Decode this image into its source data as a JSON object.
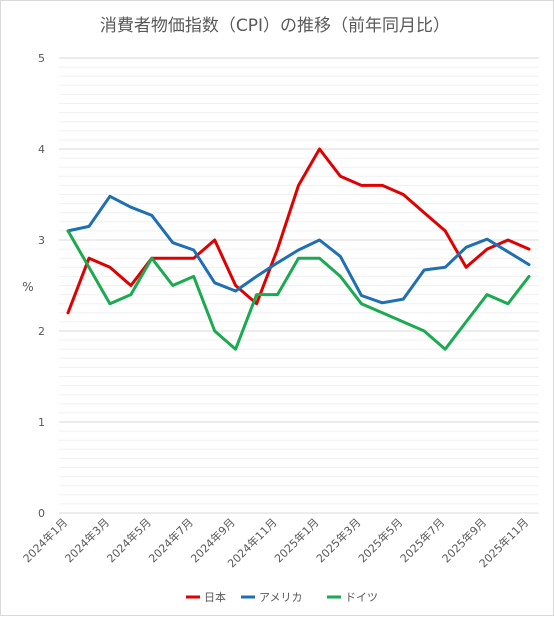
{
  "chart_data": {
    "type": "line",
    "title": "消費者物価指数（CPI）の推移（前年同月比）",
    "ylabel": "%",
    "xlabel": "",
    "ylim": [
      0,
      5
    ],
    "yticks": [
      "0",
      "1",
      "2",
      "3",
      "4",
      "5"
    ],
    "categories": [
      "2024年1月",
      "2024年2月",
      "2024年3月",
      "2024年4月",
      "2024年5月",
      "2024年6月",
      "2024年7月",
      "2024年8月",
      "2024年9月",
      "2024年10月",
      "2024年11月",
      "2024年12月",
      "2025年1月",
      "2025年2月",
      "2025年3月",
      "2025年4月",
      "2025年5月",
      "2025年6月",
      "2025年7月",
      "2025年8月",
      "2025年9月",
      "2025年10月",
      "2025年11月"
    ],
    "xtick_labels": [
      "2024年1月",
      "2024年3月",
      "2024年5月",
      "2024年7月",
      "2024年9月",
      "2024年11月",
      "2025年1月",
      "2025年3月",
      "2025年5月",
      "2025年7月",
      "2025年9月",
      "2025年11月"
    ],
    "grid": "horizontal-minor",
    "legend_position": "bottom",
    "series": [
      {
        "name": "日本",
        "color": "#e00000",
        "values": [
          2.2,
          2.8,
          2.7,
          2.5,
          2.8,
          2.8,
          2.8,
          3.0,
          2.5,
          2.3,
          2.9,
          3.6,
          4.0,
          3.7,
          3.6,
          3.6,
          3.5,
          3.3,
          3.1,
          2.7,
          2.9,
          3.0,
          2.9
        ]
      },
      {
        "name": "アメリカ",
        "color": "#1f6fb4",
        "values": [
          3.1,
          3.15,
          3.48,
          3.36,
          3.27,
          2.97,
          2.89,
          2.53,
          2.44,
          2.6,
          2.75,
          2.89,
          3.0,
          2.82,
          2.39,
          2.31,
          2.35,
          2.67,
          2.7,
          2.92,
          3.01,
          2.87,
          2.73
        ]
      },
      {
        "name": "ドイツ",
        "color": "#1aaa50",
        "values": [
          3.1,
          2.7,
          2.3,
          2.4,
          2.8,
          2.5,
          2.6,
          2.0,
          1.8,
          2.4,
          2.4,
          2.8,
          2.8,
          2.6,
          2.3,
          2.2,
          2.1,
          2.0,
          1.8,
          2.1,
          2.4,
          2.3,
          2.6
        ]
      }
    ]
  }
}
